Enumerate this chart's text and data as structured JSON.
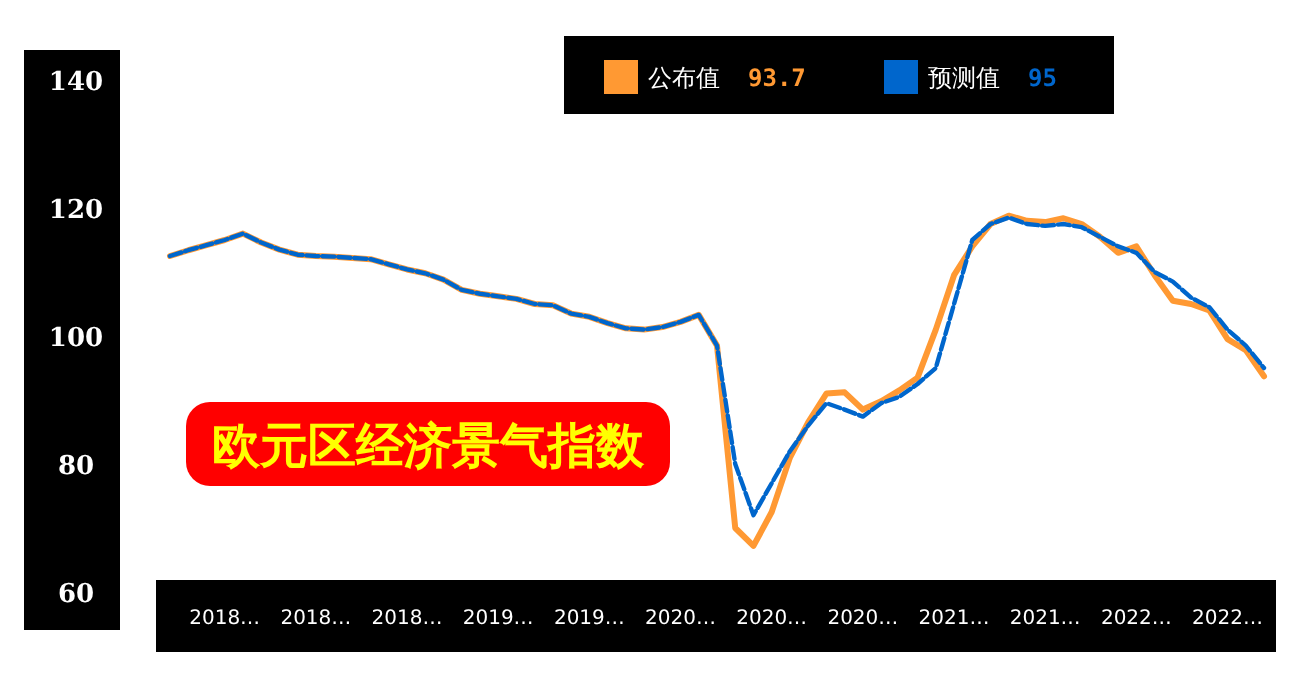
{
  "chart_data": {
    "type": "line",
    "title": "欧元区经济景气指数",
    "categories": [
      null,
      null,
      null,
      "2018…",
      null,
      null,
      null,
      null,
      "2018…",
      null,
      null,
      null,
      null,
      "2018…",
      null,
      null,
      null,
      null,
      "2019…",
      null,
      null,
      null,
      null,
      "2019…",
      null,
      null,
      null,
      null,
      "2020…",
      null,
      null,
      null,
      null,
      "2020…",
      null,
      null,
      null,
      null,
      "2020…",
      null,
      null,
      null,
      null,
      "2021…",
      null,
      null,
      null,
      null,
      "2021…",
      null,
      null,
      null,
      null,
      "2022…",
      null,
      null,
      null,
      null,
      "2022…",
      null,
      null
    ],
    "series": [
      {
        "name": "公布值",
        "color": "#ff9933",
        "line_style": "solid",
        "values": [
          112.5,
          113.4,
          114.2,
          115,
          116,
          114.6,
          113.5,
          112.7,
          112.5,
          112.4,
          112.2,
          112,
          111.2,
          110.4,
          109.8,
          108.8,
          107.2,
          106.6,
          106.2,
          105.8,
          105,
          104.8,
          103.5,
          103,
          102,
          101.2,
          101,
          101.4,
          102.2,
          103.3,
          98.5,
          70,
          67.2,
          72.5,
          81,
          86.5,
          91,
          91.2,
          88.5,
          89.8,
          91.5,
          93.5,
          101,
          109.5,
          114,
          117.5,
          118.8,
          118,
          117.8,
          118.4,
          117.5,
          115.5,
          113,
          114,
          109.5,
          105.5,
          105,
          104,
          99.5,
          97.8,
          93.7
        ]
      },
      {
        "name": "预测值",
        "color": "#0066cc",
        "line_style": "dashed",
        "values": [
          112.5,
          113.4,
          114.2,
          115,
          116,
          114.6,
          113.5,
          112.7,
          112.5,
          112.4,
          112.2,
          112,
          111.2,
          110.4,
          109.8,
          108.8,
          107.2,
          106.6,
          106.2,
          105.8,
          105,
          104.8,
          103.5,
          103,
          102,
          101.2,
          101,
          101.4,
          102.2,
          103.3,
          98.5,
          80,
          72,
          77,
          82,
          86,
          89.5,
          88.5,
          87.4,
          89.5,
          90.5,
          92.5,
          95,
          105,
          115,
          117.5,
          118.5,
          117.5,
          117.2,
          117.5,
          117,
          115.5,
          114,
          113,
          110,
          108.5,
          106,
          104.5,
          101,
          98.5,
          95
        ]
      }
    ],
    "annotations": [
      "93.7",
      "95"
    ],
    "ylim": [
      60,
      140
    ],
    "yticks": [
      60,
      80,
      100,
      120,
      140
    ],
    "legend": "top",
    "grid": false,
    "marker": "none"
  }
}
